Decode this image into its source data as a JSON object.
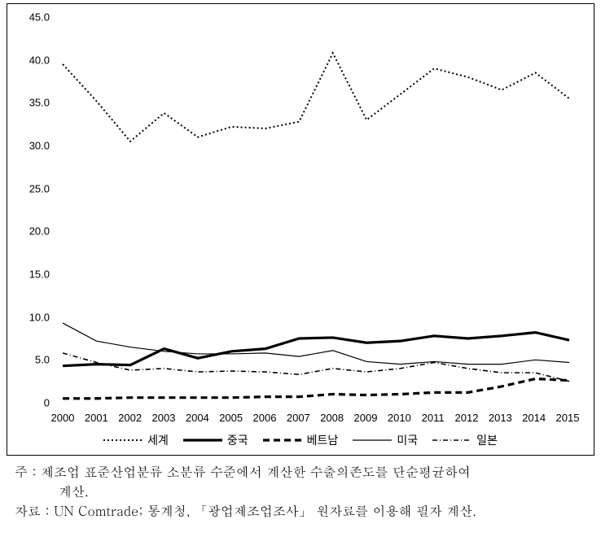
{
  "chart": {
    "type": "line",
    "background_color": "#ffffff",
    "xlim": [
      2000,
      2015
    ],
    "ylim": [
      0,
      45
    ],
    "ytick_step": 5,
    "yticks": [
      "0",
      "5.0",
      "10.0",
      "15.0",
      "20.0",
      "25.0",
      "30.0",
      "35.0",
      "40.0",
      "45.0"
    ],
    "xticks": [
      "2000",
      "2001",
      "2002",
      "2003",
      "2004",
      "2005",
      "2006",
      "2007",
      "2008",
      "2009",
      "2010",
      "2011",
      "2012",
      "2013",
      "2014",
      "2015"
    ],
    "axis_fontsize": 13,
    "series": [
      {
        "key": "world",
        "label": "세계",
        "color": "#000000",
        "stroke_width": 2,
        "dash": "2,3",
        "values": [
          39.5,
          35.2,
          30.5,
          33.8,
          31.0,
          32.2,
          32.0,
          32.8,
          40.8,
          33.0,
          36.0,
          39.0,
          38.0,
          36.5,
          38.5,
          35.5
        ]
      },
      {
        "key": "china",
        "label": "중국",
        "color": "#000000",
        "stroke_width": 3.2,
        "dash": "none",
        "values": [
          4.3,
          4.5,
          4.4,
          6.3,
          5.2,
          6.0,
          6.3,
          7.5,
          7.6,
          7.0,
          7.2,
          7.8,
          7.5,
          7.8,
          8.2,
          7.3
        ]
      },
      {
        "key": "vietnam",
        "label": "베트남",
        "color": "#000000",
        "stroke_width": 3.2,
        "dash": "8,5",
        "values": [
          0.5,
          0.5,
          0.6,
          0.6,
          0.6,
          0.6,
          0.7,
          0.7,
          1.0,
          0.9,
          1.0,
          1.2,
          1.2,
          1.9,
          2.8,
          2.6
        ]
      },
      {
        "key": "usa",
        "label": "미국",
        "color": "#000000",
        "stroke_width": 1.2,
        "dash": "none",
        "values": [
          9.3,
          7.2,
          6.5,
          6.0,
          5.7,
          5.7,
          5.8,
          5.4,
          6.1,
          4.8,
          4.5,
          4.8,
          4.5,
          4.5,
          5.0,
          4.7
        ]
      },
      {
        "key": "japan",
        "label": "일본",
        "color": "#000000",
        "stroke_width": 1.6,
        "dash": "6,3,1,3",
        "values": [
          5.8,
          4.7,
          3.8,
          4.0,
          3.6,
          3.7,
          3.6,
          3.3,
          4.0,
          3.6,
          4.0,
          4.7,
          4.0,
          3.5,
          3.5,
          2.5
        ]
      }
    ]
  },
  "legend": {
    "items": [
      {
        "key": "world",
        "label": "세계"
      },
      {
        "key": "china",
        "label": "중국"
      },
      {
        "key": "vietnam",
        "label": "베트남"
      },
      {
        "key": "usa",
        "label": "미국"
      },
      {
        "key": "japan",
        "label": "일본"
      }
    ],
    "fontsize": 14
  },
  "footnotes": {
    "note_head": "주：",
    "note_line1": "제조업  표준산업분류  소분류  수준에서  계산한  수출의존도를  단순평균하여",
    "note_line2": "계산.",
    "source_head": "자료：",
    "source_body": "UN Comtrade;  통계청, 「광업제조업조사」 원자료를 이용해 필자 계산."
  }
}
